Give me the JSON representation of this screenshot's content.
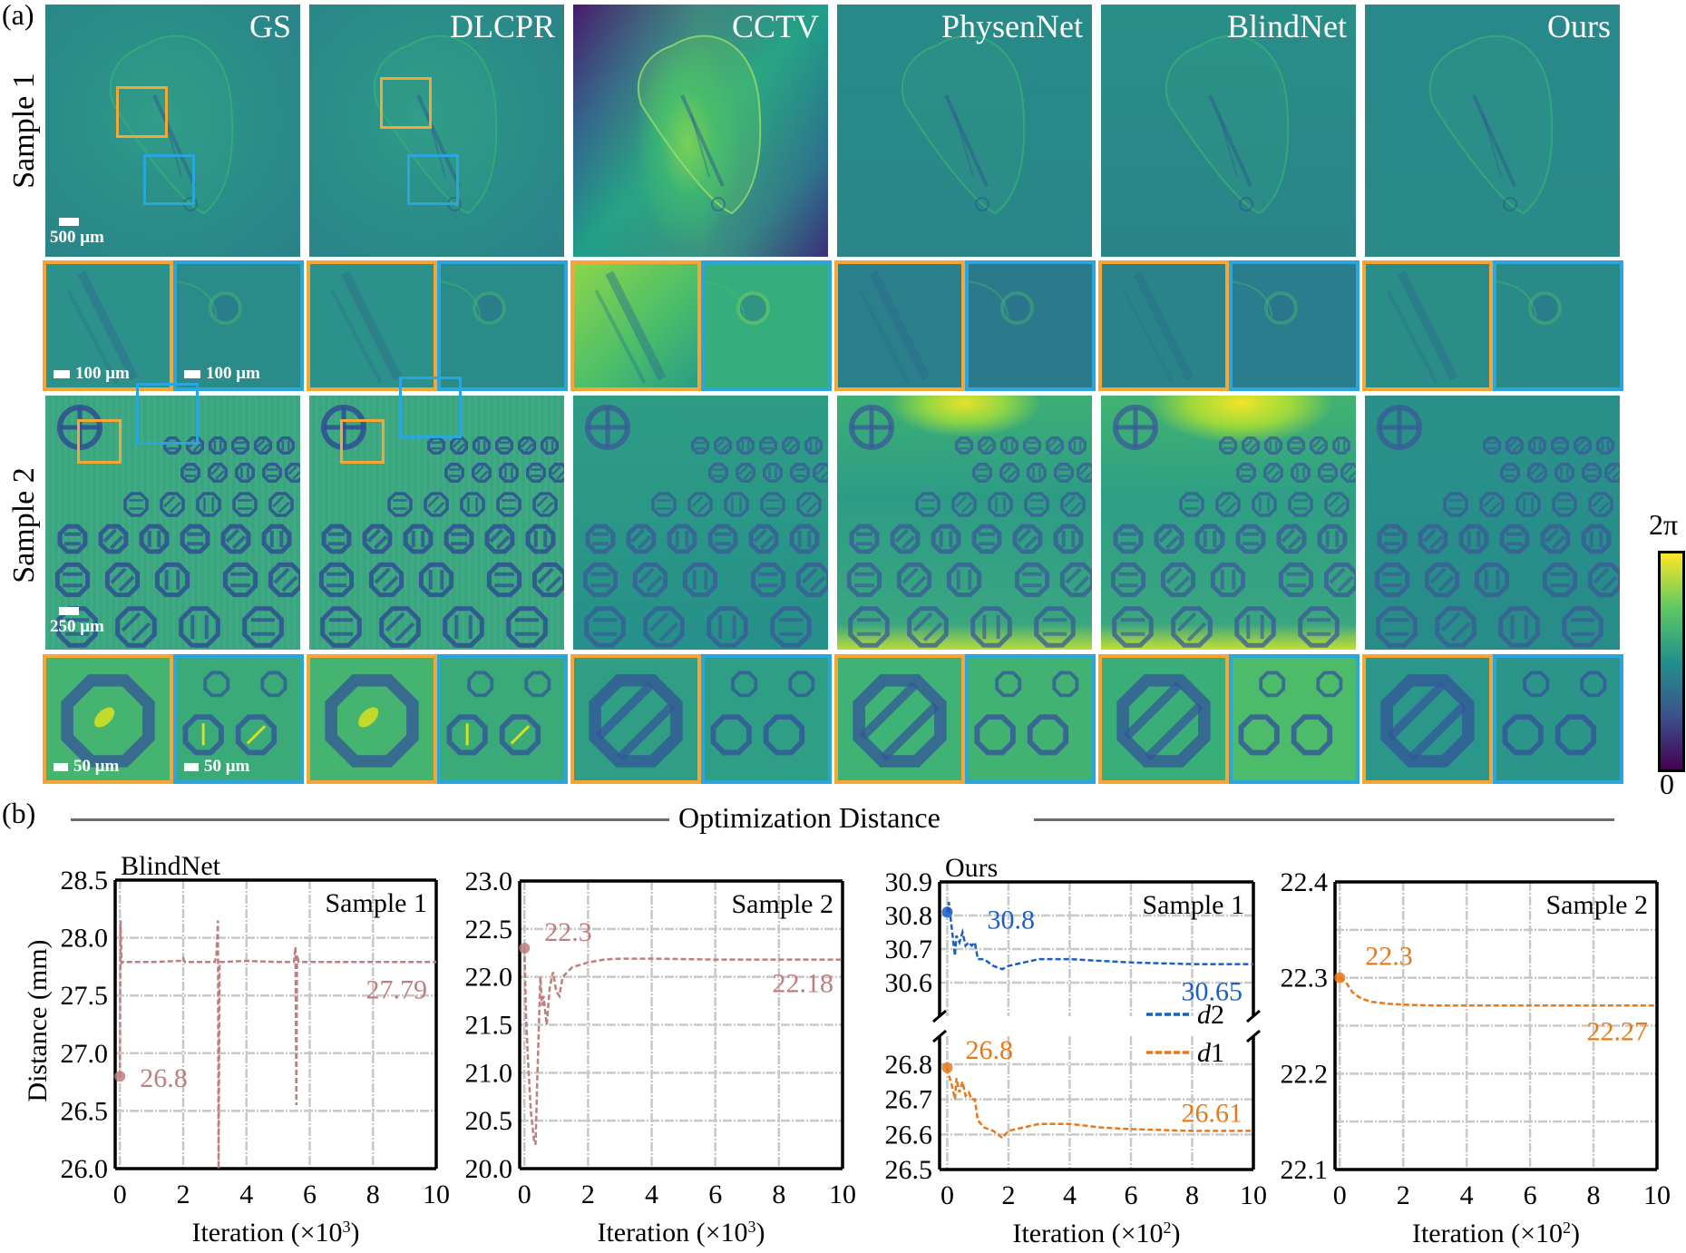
{
  "figure": {
    "part_a_label": "(a)",
    "part_b_label": "(b)",
    "rows": [
      {
        "label": "Sample 1",
        "scalebar_main": "500 μm",
        "scalebar_zoom_orange": "100 μm",
        "scalebar_zoom_blue": "100 μm"
      },
      {
        "label": "Sample 2",
        "scalebar_main": "250 μm",
        "scalebar_zoom_orange": "50 μm",
        "scalebar_zoom_blue": "50 μm"
      }
    ],
    "methods": [
      "GS",
      "DLCPR",
      "CCTV",
      "PhysenNet",
      "BlindNet",
      "Ours"
    ],
    "roi_colors": {
      "orange": "#f5a634",
      "blue": "#2aa6de"
    },
    "colorbar": {
      "max_label": "2π",
      "min_label": "0",
      "colormap": "viridis",
      "range": [
        0,
        6.2832
      ]
    }
  },
  "section_title": "Optimization Distance",
  "chart_data": [
    {
      "type": "line",
      "group_title": "BlindNet",
      "title": "Sample 1",
      "xlabel": "Iteration (×10³)",
      "ylabel": "Distance (mm)",
      "xlim": [
        -0.15,
        10
      ],
      "ylim": [
        26.0,
        28.5
      ],
      "xticks": [
        0,
        2,
        4,
        6,
        8,
        10
      ],
      "yticks": [
        26.0,
        26.5,
        27.0,
        27.5,
        28.0,
        28.5
      ],
      "ytick_labels": [
        "26.0",
        "26.5",
        "27.0",
        "27.5",
        "28.0",
        "28.5"
      ],
      "grid": true,
      "color": "#c07e7e",
      "series": [
        {
          "name": "d",
          "x": [
            0,
            0.02,
            0.05,
            0.1,
            1.0,
            1.95,
            2.0,
            2.05,
            3.0,
            3.05,
            3.1,
            3.12,
            3.15,
            3.2,
            4.0,
            5.0,
            5.5,
            5.55,
            5.58,
            5.6,
            5.65,
            6.0,
            8.0,
            10.0
          ],
          "y": [
            26.8,
            28.15,
            27.78,
            27.79,
            27.79,
            27.8,
            27.82,
            27.79,
            27.79,
            27.85,
            28.15,
            26.0,
            27.79,
            27.79,
            27.8,
            27.79,
            27.79,
            27.92,
            26.55,
            27.85,
            27.79,
            27.79,
            27.79,
            27.79
          ]
        }
      ],
      "annotations": [
        {
          "text": "26.8",
          "x": 0,
          "y": 26.8,
          "marker": true
        },
        {
          "text": "27.79",
          "x": 10,
          "y": 27.79
        }
      ]
    },
    {
      "type": "line",
      "group_title": "",
      "title": "Sample 2",
      "xlabel": "Iteration (×10³)",
      "ylabel": "",
      "xlim": [
        -0.15,
        10
      ],
      "ylim": [
        20.0,
        23.0
      ],
      "xticks": [
        0,
        2,
        4,
        6,
        8,
        10
      ],
      "yticks": [
        20.0,
        20.5,
        21.0,
        21.5,
        22.0,
        22.5,
        23.0
      ],
      "ytick_labels": [
        "20.0",
        "20.5",
        "21.0",
        "21.5",
        "22.0",
        "22.5",
        "23.0"
      ],
      "grid": true,
      "color": "#c07e7e",
      "series": [
        {
          "name": "d",
          "x": [
            0,
            0.05,
            0.1,
            0.2,
            0.3,
            0.35,
            0.4,
            0.5,
            0.55,
            0.6,
            0.7,
            0.8,
            0.9,
            1.0,
            1.1,
            1.2,
            1.5,
            2.0,
            2.5,
            3.0,
            4.0,
            6.0,
            8.0,
            10.0
          ],
          "y": [
            22.3,
            21.6,
            21.2,
            20.6,
            20.3,
            20.25,
            20.9,
            22.0,
            21.7,
            21.8,
            21.5,
            21.9,
            22.05,
            21.85,
            21.8,
            22.0,
            22.1,
            22.15,
            22.18,
            22.19,
            22.19,
            22.18,
            22.18,
            22.18
          ]
        }
      ],
      "annotations": [
        {
          "text": "22.3",
          "x": 0,
          "y": 22.3,
          "marker": true
        },
        {
          "text": "22.18",
          "x": 10,
          "y": 22.18
        }
      ]
    },
    {
      "type": "line",
      "group_title": "Ours",
      "title": "Sample 1",
      "xlabel": "Iteration (×10²)",
      "ylabel": "",
      "xlim": [
        -0.25,
        10
      ],
      "broken_axis": true,
      "upper": {
        "ylim": [
          30.5,
          30.9
        ],
        "yticks": [
          30.6,
          30.7,
          30.8,
          30.9
        ],
        "ytick_labels": [
          "30.6",
          "30.7",
          "30.8",
          "30.9"
        ]
      },
      "lower": {
        "ylim": [
          26.5,
          26.88
        ],
        "yticks": [
          26.5,
          26.6,
          26.7,
          26.8
        ],
        "ytick_labels": [
          "26.5",
          "26.6",
          "26.7",
          "26.8"
        ]
      },
      "xticks": [
        0,
        2,
        4,
        6,
        8,
        10
      ],
      "grid": true,
      "series": [
        {
          "name": "d2",
          "color": "#1a5fc4",
          "axis": "upper",
          "x": [
            0,
            0.05,
            0.15,
            0.25,
            0.3,
            0.4,
            0.5,
            0.6,
            0.7,
            0.8,
            0.9,
            1.0,
            1.2,
            1.5,
            1.8,
            2.0,
            2.5,
            3.0,
            3.5,
            4.0,
            5.0,
            6.0,
            8.0,
            10.0
          ],
          "y": [
            30.81,
            30.84,
            30.76,
            30.68,
            30.74,
            30.72,
            30.75,
            30.71,
            30.72,
            30.71,
            30.72,
            30.67,
            30.67,
            30.65,
            30.64,
            30.65,
            30.66,
            30.67,
            30.67,
            30.67,
            30.665,
            30.66,
            30.655,
            30.655
          ]
        },
        {
          "name": "d1",
          "color": "#e8791a",
          "axis": "lower",
          "x": [
            0,
            0.05,
            0.15,
            0.25,
            0.3,
            0.4,
            0.5,
            0.6,
            0.7,
            0.8,
            0.9,
            1.0,
            1.2,
            1.5,
            1.8,
            2.0,
            2.5,
            3.0,
            3.5,
            4.0,
            5.0,
            6.0,
            8.0,
            10.0
          ],
          "y": [
            26.79,
            26.77,
            26.74,
            26.7,
            26.76,
            26.72,
            26.75,
            26.71,
            26.72,
            26.7,
            26.7,
            26.64,
            26.62,
            26.61,
            26.59,
            26.61,
            26.62,
            26.63,
            26.63,
            26.63,
            26.62,
            26.615,
            26.61,
            26.61
          ]
        }
      ],
      "legend": [
        {
          "label": "d2",
          "color": "#1a5fc4"
        },
        {
          "label": "d1",
          "color": "#e8791a"
        }
      ],
      "legend_position": "right-middle",
      "annotations": [
        {
          "text": "30.8",
          "x": 0,
          "y": 30.81,
          "axis": "upper",
          "marker": true,
          "color": "#1a5fc4"
        },
        {
          "text": "30.65",
          "x": 10,
          "y": 30.655,
          "axis": "upper",
          "color": "#1a5fc4"
        },
        {
          "text": "26.8",
          "x": 0,
          "y": 26.79,
          "axis": "lower",
          "marker": true,
          "color": "#e8791a"
        },
        {
          "text": "26.61",
          "x": 10,
          "y": 26.61,
          "axis": "lower",
          "color": "#e8791a"
        }
      ]
    },
    {
      "type": "line",
      "group_title": "",
      "title": "Sample 2",
      "xlabel": "Iteration (×10²)",
      "ylabel": "",
      "xlim": [
        -0.15,
        10
      ],
      "ylim": [
        22.1,
        22.4
      ],
      "xticks": [
        0,
        2,
        4,
        6,
        8,
        10
      ],
      "yticks": [
        22.1,
        22.15,
        22.2,
        22.25,
        22.3,
        22.35,
        22.4
      ],
      "ytick_labels": [
        "22.1",
        "",
        "22.2",
        "",
        "22.3",
        "",
        "22.4"
      ],
      "grid": true,
      "color": "#e8791a",
      "series": [
        {
          "name": "d",
          "x": [
            0,
            0.2,
            0.4,
            0.6,
            0.8,
            1.0,
            1.5,
            2.0,
            3.0,
            5.0,
            8.0,
            10.0
          ],
          "y": [
            22.3,
            22.295,
            22.285,
            22.28,
            22.277,
            22.275,
            22.273,
            22.272,
            22.271,
            22.271,
            22.271,
            22.271
          ]
        }
      ],
      "annotations": [
        {
          "text": "22.3",
          "x": 0,
          "y": 22.3,
          "marker": true
        },
        {
          "text": "22.27",
          "x": 10,
          "y": 22.271
        }
      ]
    }
  ]
}
